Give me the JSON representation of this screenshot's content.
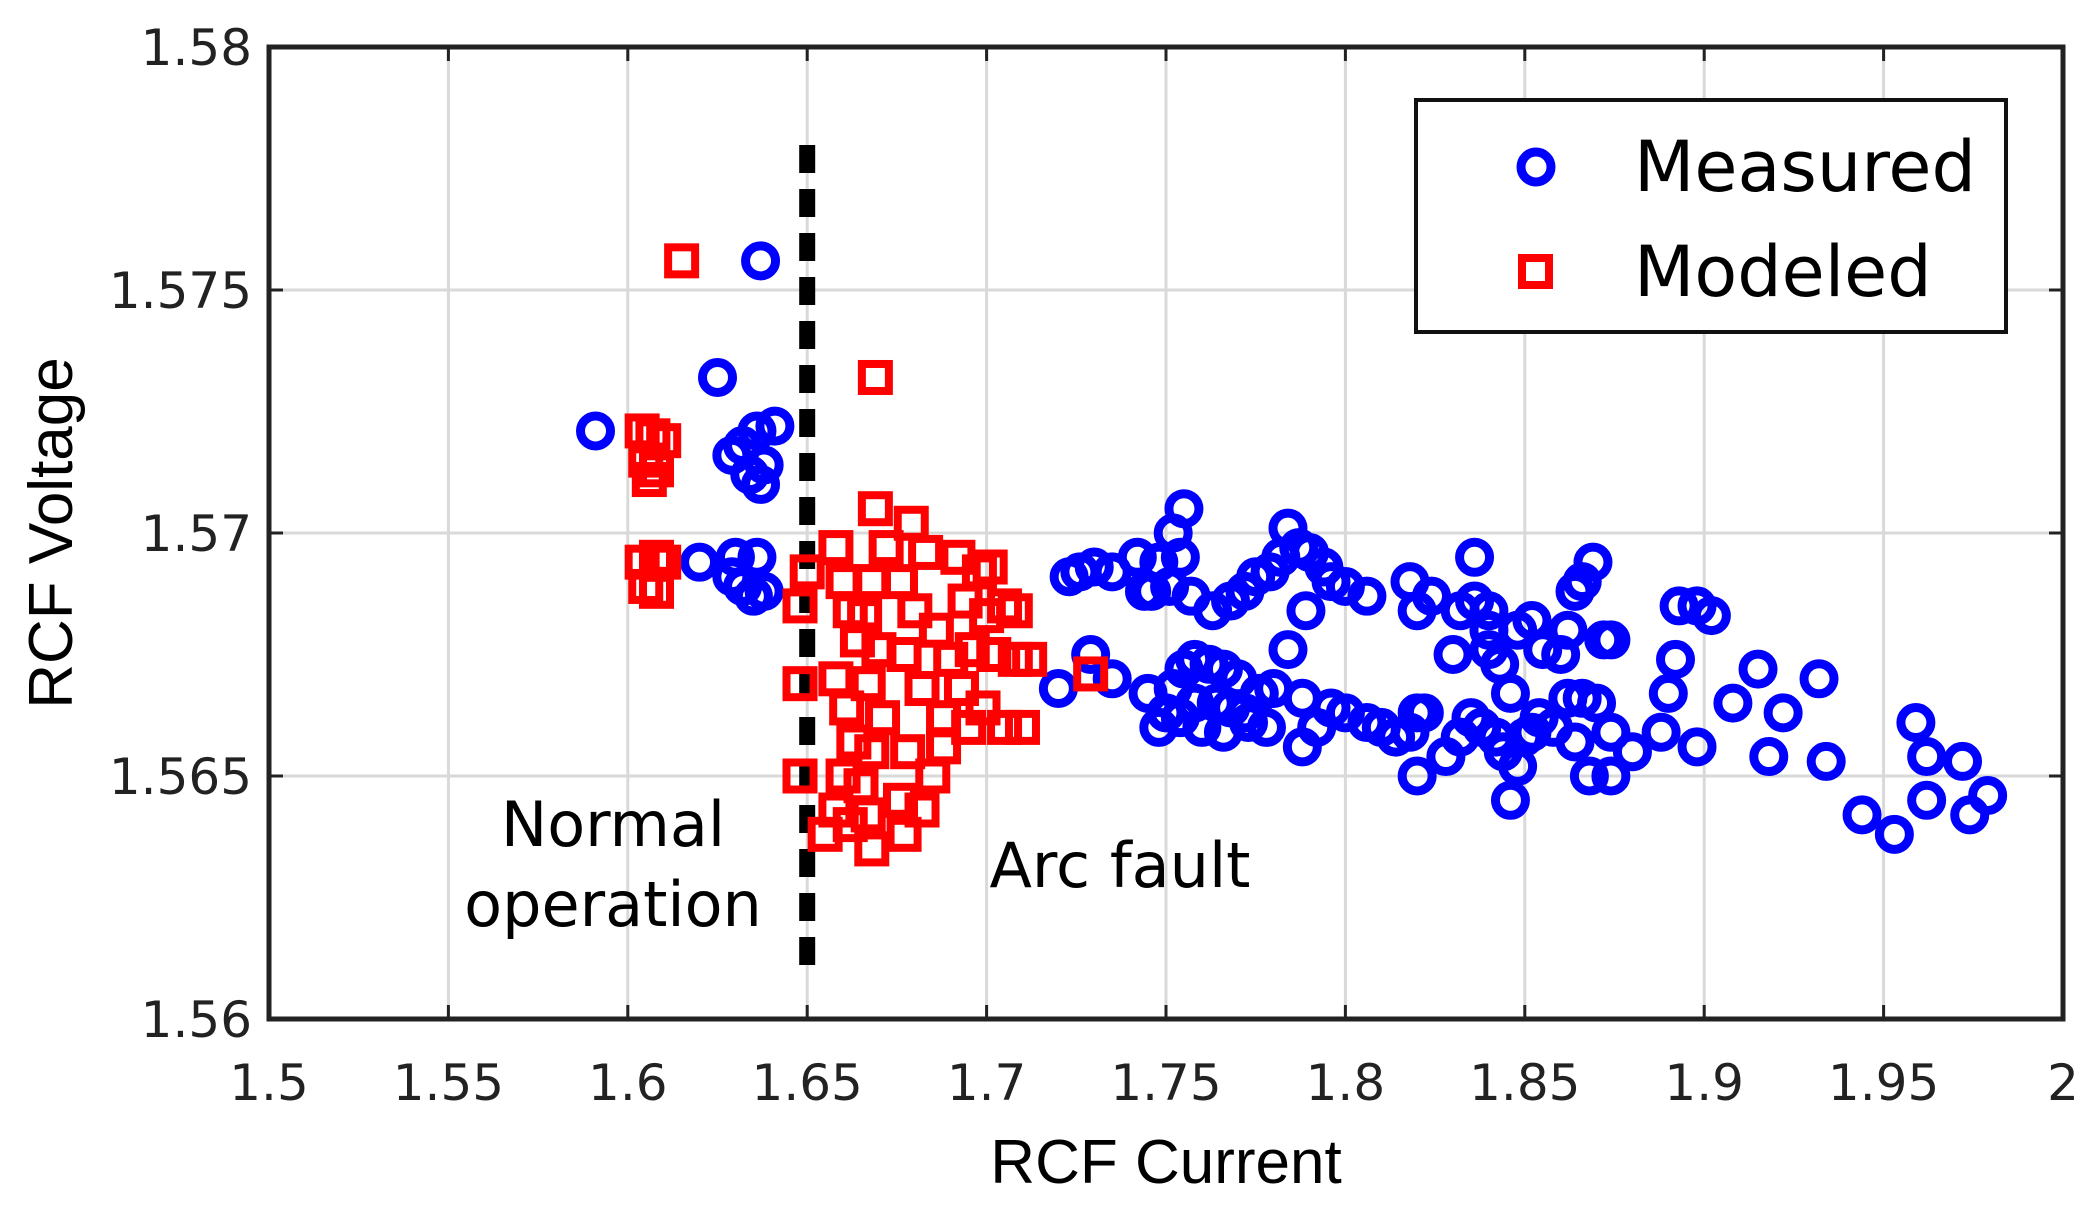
{
  "chart_data": {
    "type": "scatter",
    "xlabel": "RCF Current",
    "ylabel": "RCF Voltage",
    "xlim": [
      1.5,
      2.0
    ],
    "ylim": [
      1.56,
      1.58
    ],
    "x_ticks": [
      "1.5",
      "1.55",
      "1.6",
      "1.65",
      "1.7",
      "1.75",
      "1.8",
      "1.85",
      "1.9",
      "1.95",
      "2"
    ],
    "y_ticks": [
      "1.56",
      "1.565",
      "1.57",
      "1.575",
      "1.58"
    ],
    "grid": true,
    "legend_position": "top-right",
    "threshold": {
      "x": 1.65,
      "style": "dashed",
      "color": "#000000"
    },
    "annotations": {
      "left_line1": "Normal",
      "left_line2": "operation",
      "right": "Arc fault"
    },
    "series": [
      {
        "name": "Measured",
        "marker": "circle",
        "color": "#0000ff",
        "points": [
          [
            1.591,
            1.5721
          ],
          [
            1.625,
            1.5732
          ],
          [
            1.637,
            1.5756
          ],
          [
            1.632,
            1.5718
          ],
          [
            1.636,
            1.5721
          ],
          [
            1.641,
            1.5722
          ],
          [
            1.629,
            1.5716
          ],
          [
            1.638,
            1.5714
          ],
          [
            1.634,
            1.5712
          ],
          [
            1.637,
            1.571
          ],
          [
            1.62,
            1.5694
          ],
          [
            1.63,
            1.5695
          ],
          [
            1.636,
            1.5695
          ],
          [
            1.629,
            1.5691
          ],
          [
            1.632,
            1.5689
          ],
          [
            1.638,
            1.5688
          ],
          [
            1.635,
            1.5687
          ],
          [
            1.72,
            1.5668
          ],
          [
            1.723,
            1.5691
          ],
          [
            1.726,
            1.5692
          ],
          [
            1.73,
            1.5693
          ],
          [
            1.735,
            1.5692
          ],
          [
            1.729,
            1.5675
          ],
          [
            1.735,
            1.567
          ],
          [
            1.742,
            1.5695
          ],
          [
            1.746,
            1.5688
          ],
          [
            1.748,
            1.5694
          ],
          [
            1.744,
            1.5688
          ],
          [
            1.752,
            1.57
          ],
          [
            1.755,
            1.5705
          ],
          [
            1.754,
            1.5695
          ],
          [
            1.751,
            1.5689
          ],
          [
            1.757,
            1.5687
          ],
          [
            1.745,
            1.5667
          ],
          [
            1.75,
            1.5663
          ],
          [
            1.752,
            1.5668
          ],
          [
            1.755,
            1.5672
          ],
          [
            1.758,
            1.5674
          ],
          [
            1.762,
            1.5673
          ],
          [
            1.766,
            1.5672
          ],
          [
            1.77,
            1.567
          ],
          [
            1.758,
            1.5665
          ],
          [
            1.764,
            1.5665
          ],
          [
            1.768,
            1.5664
          ],
          [
            1.772,
            1.5663
          ],
          [
            1.776,
            1.5667
          ],
          [
            1.78,
            1.5668
          ],
          [
            1.784,
            1.5676
          ],
          [
            1.754,
            1.5662
          ],
          [
            1.76,
            1.566
          ],
          [
            1.766,
            1.5659
          ],
          [
            1.773,
            1.5661
          ],
          [
            1.778,
            1.566
          ],
          [
            1.748,
            1.566
          ],
          [
            1.763,
            1.5684
          ],
          [
            1.768,
            1.5686
          ],
          [
            1.772,
            1.5688
          ],
          [
            1.775,
            1.5691
          ],
          [
            1.779,
            1.5692
          ],
          [
            1.782,
            1.5695
          ],
          [
            1.784,
            1.5701
          ],
          [
            1.787,
            1.5697
          ],
          [
            1.79,
            1.5696
          ],
          [
            1.794,
            1.5693
          ],
          [
            1.789,
            1.5684
          ],
          [
            1.796,
            1.569
          ],
          [
            1.8,
            1.5689
          ],
          [
            1.806,
            1.5687
          ],
          [
            1.788,
            1.5666
          ],
          [
            1.792,
            1.566
          ],
          [
            1.788,
            1.5656
          ],
          [
            1.796,
            1.5664
          ],
          [
            1.8,
            1.5663
          ],
          [
            1.806,
            1.5661
          ],
          [
            1.81,
            1.566
          ],
          [
            1.814,
            1.5658
          ],
          [
            1.818,
            1.5659
          ],
          [
            1.82,
            1.5663
          ],
          [
            1.822,
            1.5663
          ],
          [
            1.82,
            1.565
          ],
          [
            1.818,
            1.569
          ],
          [
            1.82,
            1.5684
          ],
          [
            1.824,
            1.5687
          ],
          [
            1.83,
            1.5675
          ],
          [
            1.832,
            1.5684
          ],
          [
            1.836,
            1.5695
          ],
          [
            1.836,
            1.5686
          ],
          [
            1.84,
            1.5684
          ],
          [
            1.84,
            1.5676
          ],
          [
            1.843,
            1.5673
          ],
          [
            1.84,
            1.568
          ],
          [
            1.846,
            1.5667
          ],
          [
            1.848,
            1.568
          ],
          [
            1.852,
            1.5682
          ],
          [
            1.855,
            1.5676
          ],
          [
            1.828,
            1.5654
          ],
          [
            1.832,
            1.5658
          ],
          [
            1.835,
            1.5662
          ],
          [
            1.838,
            1.566
          ],
          [
            1.842,
            1.5658
          ],
          [
            1.844,
            1.5655
          ],
          [
            1.846,
            1.5645
          ],
          [
            1.848,
            1.5652
          ],
          [
            1.85,
            1.5658
          ],
          [
            1.852,
            1.5659
          ],
          [
            1.854,
            1.5662
          ],
          [
            1.858,
            1.566
          ],
          [
            1.86,
            1.5675
          ],
          [
            1.862,
            1.568
          ],
          [
            1.864,
            1.5688
          ],
          [
            1.866,
            1.569
          ],
          [
            1.869,
            1.5694
          ],
          [
            1.872,
            1.5678
          ],
          [
            1.874,
            1.5678
          ],
          [
            1.862,
            1.5666
          ],
          [
            1.866,
            1.5666
          ],
          [
            1.87,
            1.5665
          ],
          [
            1.864,
            1.5657
          ],
          [
            1.868,
            1.565
          ],
          [
            1.874,
            1.565
          ],
          [
            1.874,
            1.5659
          ],
          [
            1.88,
            1.5655
          ],
          [
            1.888,
            1.5659
          ],
          [
            1.89,
            1.5667
          ],
          [
            1.892,
            1.5674
          ],
          [
            1.893,
            1.5685
          ],
          [
            1.898,
            1.5685
          ],
          [
            1.902,
            1.5683
          ],
          [
            1.898,
            1.5656
          ],
          [
            1.908,
            1.5665
          ],
          [
            1.915,
            1.5672
          ],
          [
            1.918,
            1.5654
          ],
          [
            1.922,
            1.5663
          ],
          [
            1.932,
            1.567
          ],
          [
            1.934,
            1.5653
          ],
          [
            1.944,
            1.5642
          ],
          [
            1.953,
            1.5638
          ],
          [
            1.959,
            1.5661
          ],
          [
            1.962,
            1.5654
          ],
          [
            1.962,
            1.5645
          ],
          [
            1.972,
            1.5653
          ],
          [
            1.974,
            1.5642
          ],
          [
            1.979,
            1.5646
          ]
        ]
      },
      {
        "name": "Modeled",
        "marker": "square",
        "color": "#ff0000",
        "points": [
          [
            1.615,
            1.5756
          ],
          [
            1.669,
            1.5732
          ],
          [
            1.604,
            1.5721
          ],
          [
            1.607,
            1.572
          ],
          [
            1.61,
            1.5719
          ],
          [
            1.605,
            1.5715
          ],
          [
            1.608,
            1.5713
          ],
          [
            1.606,
            1.5711
          ],
          [
            1.604,
            1.5694
          ],
          [
            1.608,
            1.5695
          ],
          [
            1.61,
            1.5694
          ],
          [
            1.605,
            1.5689
          ],
          [
            1.608,
            1.5688
          ],
          [
            1.648,
            1.5685
          ],
          [
            1.65,
            1.5692
          ],
          [
            1.648,
            1.5669
          ],
          [
            1.648,
            1.565
          ],
          [
            1.658,
            1.5697
          ],
          [
            1.66,
            1.569
          ],
          [
            1.662,
            1.5684
          ],
          [
            1.664,
            1.5678
          ],
          [
            1.658,
            1.567
          ],
          [
            1.661,
            1.5664
          ],
          [
            1.663,
            1.5657
          ],
          [
            1.66,
            1.565
          ],
          [
            1.658,
            1.5643
          ],
          [
            1.662,
            1.564
          ],
          [
            1.669,
            1.5705
          ],
          [
            1.672,
            1.5697
          ],
          [
            1.668,
            1.569
          ],
          [
            1.666,
            1.5683
          ],
          [
            1.67,
            1.5676
          ],
          [
            1.667,
            1.5669
          ],
          [
            1.671,
            1.5662
          ],
          [
            1.668,
            1.5655
          ],
          [
            1.665,
            1.5648
          ],
          [
            1.667,
            1.5642
          ],
          [
            1.679,
            1.5702
          ],
          [
            1.683,
            1.5696
          ],
          [
            1.676,
            1.569
          ],
          [
            1.68,
            1.5684
          ],
          [
            1.686,
            1.568
          ],
          [
            1.677,
            1.5675
          ],
          [
            1.682,
            1.5668
          ],
          [
            1.688,
            1.5662
          ],
          [
            1.678,
            1.5655
          ],
          [
            1.685,
            1.565
          ],
          [
            1.676,
            1.5645
          ],
          [
            1.682,
            1.5643
          ],
          [
            1.677,
            1.5638
          ],
          [
            1.668,
            1.5635
          ],
          [
            1.655,
            1.5638
          ],
          [
            1.692,
            1.5695
          ],
          [
            1.698,
            1.5692
          ],
          [
            1.694,
            1.5686
          ],
          [
            1.7,
            1.5683
          ],
          [
            1.696,
            1.5676
          ],
          [
            1.702,
            1.5675
          ],
          [
            1.693,
            1.5668
          ],
          [
            1.699,
            1.5664
          ],
          [
            1.705,
            1.566
          ],
          [
            1.71,
            1.566
          ],
          [
            1.695,
            1.566
          ],
          [
            1.701,
            1.5693
          ],
          [
            1.705,
            1.5685
          ],
          [
            1.708,
            1.5684
          ],
          [
            1.712,
            1.5674
          ],
          [
            1.708,
            1.5674
          ],
          [
            1.729,
            1.5671
          ],
          [
            1.69,
            1.5674
          ],
          [
            1.688,
            1.5656
          ]
        ]
      }
    ]
  }
}
